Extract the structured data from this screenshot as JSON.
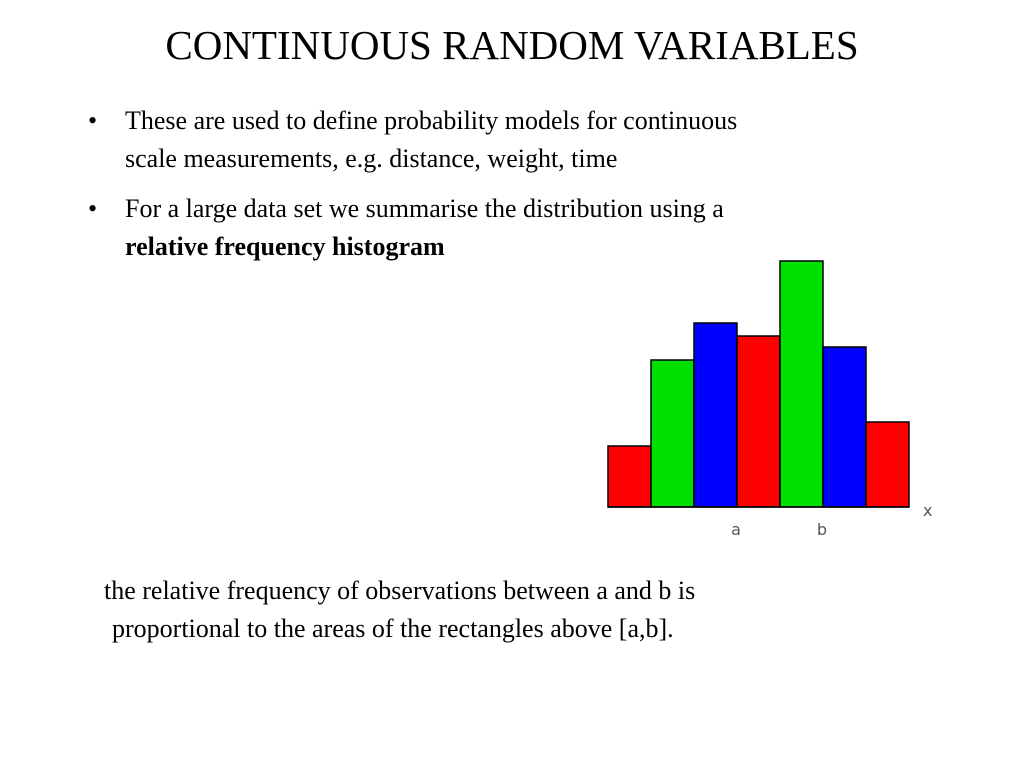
{
  "slide": {
    "title": "CONTINUOUS RANDOM VARIABLES",
    "bullets": [
      {
        "marker": "•",
        "line1": "These are used to define probability models for continuous",
        "line2": "scale measurements,  e.g. distance, weight, time"
      },
      {
        "marker": "•",
        "line1": "For a large data set we summarise the distribution using a",
        "line2_bold": "relative frequency histogram"
      }
    ],
    "caption": {
      "line1": "the relative frequency of observations between a and b is",
      "line2": "proportional to the areas of the rectangles above [a,b]."
    }
  },
  "chart_data": {
    "type": "bar",
    "values": [
      61,
      147,
      184,
      171,
      246,
      160,
      85
    ],
    "colors": [
      "#ff0000",
      "#00e000",
      "#0000ff",
      "#ff0000",
      "#00e000",
      "#0000ff",
      "#ff0000"
    ],
    "x_label": "x",
    "markers": [
      {
        "label": "a",
        "bin_edge": 3
      },
      {
        "label": "b",
        "bin_edge": 5
      }
    ],
    "grid": false,
    "legend": "none"
  }
}
